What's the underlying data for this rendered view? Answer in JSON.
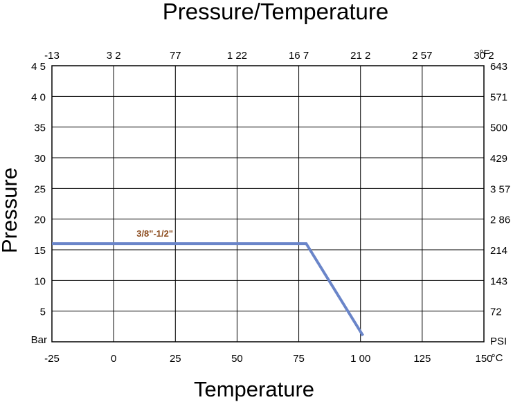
{
  "chart_data": {
    "type": "line",
    "title": "Pressure/Temperature",
    "xlabel": "Temperature",
    "ylabel": "Pressure",
    "x_unit": "°C",
    "x_unit_top": "°F",
    "y_unit": "Bar",
    "y_unit_right": "PSI",
    "grid": true,
    "xlim": [
      -25,
      150
    ],
    "ylim": [
      0,
      45
    ],
    "x_ticks": [
      -25,
      0,
      25,
      50,
      75,
      100,
      125,
      150
    ],
    "x_tick_labels": [
      "-25",
      "0",
      "25",
      "50",
      "75",
      "1 00",
      "125",
      "150"
    ],
    "x_top_tick_labels": [
      "-13",
      "3 2",
      "77",
      "1 22",
      "16 7",
      "21 2",
      "2 57",
      "30 2"
    ],
    "y_ticks": [
      5,
      10,
      15,
      20,
      25,
      30,
      35,
      40,
      45
    ],
    "y_tick_labels": [
      "5",
      "10",
      "15",
      "20",
      "25",
      "30",
      "35",
      "4 0",
      "4 5"
    ],
    "y_right_tick_labels": [
      "72",
      "143",
      "214",
      "2 86",
      "3 57",
      "429",
      "500",
      "571",
      "643"
    ],
    "series": [
      {
        "name": "3/8\"-1/2\"",
        "color": "#6a85c9",
        "x": [
          -25,
          78,
          101
        ],
        "y": [
          16,
          16,
          1
        ]
      }
    ],
    "series_label_color": "#8b4a1c"
  }
}
